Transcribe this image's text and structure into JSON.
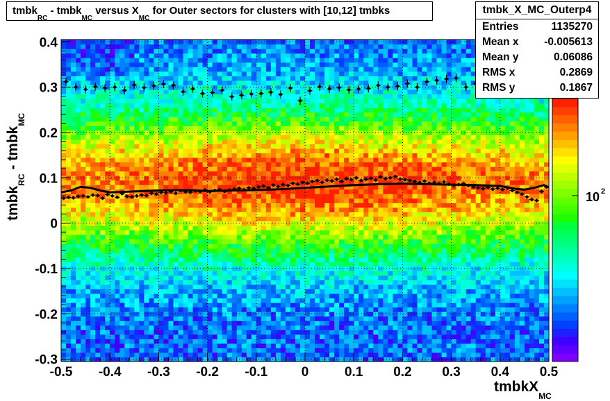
{
  "chart_data": {
    "type": "heatmap",
    "title": {
      "parts": [
        "tmbk",
        "RC",
        " - tmbk",
        "MC",
        " versus X",
        "MC",
        " for Outer sectors for clusters with [10,12] tmbks"
      ]
    },
    "xlabel": {
      "main": "tmbkX",
      "sub": "MC"
    },
    "ylabel": {
      "main1": "tmbk",
      "sub1": "RC",
      "main2": " - tmbk",
      "sub2": "MC"
    },
    "xlim": [
      -0.5,
      0.5
    ],
    "ylim": [
      -0.305,
      0.405
    ],
    "x_ticks": [
      "-0.5",
      "-0.4",
      "-0.3",
      "-0.2",
      "-0.1",
      "0",
      "0.1",
      "0.2",
      "0.3",
      "0.4",
      "0.5"
    ],
    "x_tick_values": [
      -0.5,
      -0.4,
      -0.3,
      -0.2,
      -0.1,
      0,
      0.1,
      0.2,
      0.3,
      0.4,
      0.5
    ],
    "y_ticks": [
      "-0.3",
      "-0.2",
      "-0.1",
      "0",
      "0.1",
      "0.2",
      "0.3",
      "0.4"
    ],
    "y_tick_values": [
      -0.3,
      -0.2,
      -0.1,
      0,
      0.1,
      0.2,
      0.3,
      0.4
    ],
    "grid": true,
    "colorbar": {
      "label": "10",
      "exponent": "2",
      "scale": "log"
    },
    "stats": {
      "name": "tmbk_X_MC_Outerp4",
      "rows": [
        {
          "key": "Entries",
          "value": "1135270"
        },
        {
          "key": "Mean x",
          "value": "-0.005613"
        },
        {
          "key": "Mean y",
          "value": "0.06086"
        },
        {
          "key": "RMS x",
          "value": "0.2869"
        },
        {
          "key": "RMS y",
          "value": "0.1867"
        }
      ]
    },
    "fit_curve": {
      "x": [
        -0.5,
        -0.48,
        -0.46,
        -0.44,
        -0.42,
        -0.4,
        -0.35,
        -0.3,
        -0.25,
        -0.2,
        -0.15,
        -0.1,
        -0.05,
        0,
        0.05,
        0.1,
        0.15,
        0.2,
        0.25,
        0.3,
        0.35,
        0.4,
        0.43,
        0.45,
        0.47,
        0.49,
        0.5
      ],
      "y": [
        0.068,
        0.072,
        0.08,
        0.078,
        0.072,
        0.068,
        0.07,
        0.072,
        0.073,
        0.071,
        0.072,
        0.073,
        0.075,
        0.078,
        0.081,
        0.084,
        0.086,
        0.087,
        0.086,
        0.085,
        0.084,
        0.082,
        0.076,
        0.074,
        0.078,
        0.084,
        0.079
      ]
    },
    "mean_profile": {
      "x": [
        -0.495,
        -0.485,
        -0.475,
        -0.465,
        -0.455,
        -0.445,
        -0.435,
        -0.425,
        -0.415,
        -0.405,
        -0.395,
        -0.385,
        -0.375,
        -0.365,
        -0.355,
        -0.345,
        -0.335,
        -0.325,
        -0.315,
        -0.305,
        -0.295,
        -0.285,
        -0.275,
        -0.265,
        -0.255,
        -0.245,
        -0.235,
        -0.225,
        -0.215,
        -0.205,
        -0.195,
        -0.185,
        -0.175,
        -0.165,
        -0.155,
        -0.145,
        -0.135,
        -0.125,
        -0.115,
        -0.105,
        -0.095,
        -0.085,
        -0.075,
        -0.065,
        -0.055,
        -0.045,
        -0.035,
        -0.025,
        -0.015,
        -0.005,
        0.005,
        0.015,
        0.025,
        0.035,
        0.045,
        0.055,
        0.065,
        0.075,
        0.085,
        0.095,
        0.105,
        0.115,
        0.125,
        0.135,
        0.145,
        0.155,
        0.165,
        0.175,
        0.185,
        0.195,
        0.205,
        0.215,
        0.225,
        0.235,
        0.245,
        0.255,
        0.265,
        0.275,
        0.285,
        0.295,
        0.305,
        0.315,
        0.325,
        0.335,
        0.345,
        0.355,
        0.365,
        0.375,
        0.385,
        0.395,
        0.405,
        0.415,
        0.425,
        0.435,
        0.445,
        0.455,
        0.465,
        0.475,
        0.485,
        0.495
      ],
      "y": [
        0.055,
        0.057,
        0.056,
        0.059,
        0.06,
        0.058,
        0.062,
        0.061,
        0.055,
        0.063,
        0.06,
        0.057,
        0.065,
        0.059,
        0.058,
        0.06,
        0.062,
        0.061,
        0.066,
        0.064,
        0.068,
        0.067,
        0.07,
        0.066,
        0.072,
        0.069,
        0.068,
        0.071,
        0.07,
        0.073,
        0.069,
        0.072,
        0.074,
        0.07,
        0.073,
        0.075,
        0.077,
        0.074,
        0.078,
        0.076,
        0.08,
        0.082,
        0.078,
        0.084,
        0.081,
        0.085,
        0.083,
        0.088,
        0.086,
        0.09,
        0.088,
        0.092,
        0.094,
        0.09,
        0.095,
        0.093,
        0.097,
        0.092,
        0.098,
        0.096,
        0.1,
        0.094,
        0.097,
        0.099,
        0.095,
        0.102,
        0.098,
        0.1,
        0.103,
        0.097,
        0.096,
        0.094,
        0.092,
        0.09,
        0.093,
        0.088,
        0.09,
        0.087,
        0.091,
        0.086,
        0.084,
        0.085,
        0.087,
        0.083,
        0.08,
        0.078,
        0.076,
        0.079,
        0.075,
        0.077,
        0.074,
        0.078,
        0.072,
        0.068,
        0.064,
        0.058,
        0.052,
        0.05,
        0.07,
        0.08
      ],
      "yerr": 0.004
    },
    "upper_profile": {
      "x": [
        -0.49,
        -0.47,
        -0.45,
        -0.43,
        -0.41,
        -0.39,
        -0.37,
        -0.35,
        -0.33,
        -0.31,
        -0.29,
        -0.27,
        -0.25,
        -0.23,
        -0.21,
        -0.19,
        -0.17,
        -0.15,
        -0.13,
        -0.11,
        -0.09,
        -0.07,
        -0.05,
        -0.03,
        -0.01,
        0.01,
        0.03,
        0.05,
        0.07,
        0.09,
        0.11,
        0.13,
        0.15,
        0.17,
        0.19,
        0.21,
        0.23,
        0.25,
        0.27,
        0.29,
        0.31,
        0.33,
        0.35,
        0.37,
        0.39,
        0.41,
        0.43,
        0.45,
        0.47,
        0.49
      ],
      "y": [
        0.312,
        0.3,
        0.295,
        0.301,
        0.298,
        0.3,
        0.293,
        0.305,
        0.299,
        0.303,
        0.307,
        0.304,
        0.29,
        0.296,
        0.286,
        0.288,
        0.293,
        0.279,
        0.282,
        0.285,
        0.286,
        0.289,
        0.284,
        0.298,
        0.27,
        0.292,
        0.301,
        0.296,
        0.299,
        0.294,
        0.296,
        0.297,
        0.304,
        0.3,
        0.302,
        0.308,
        0.3,
        0.312,
        0.315,
        0.318,
        0.32,
        0.3,
        0.308,
        0.322,
        0.318,
        0.33,
        0.324,
        0.316,
        0.312,
        0.3
      ],
      "yerr": 0.009
    }
  }
}
